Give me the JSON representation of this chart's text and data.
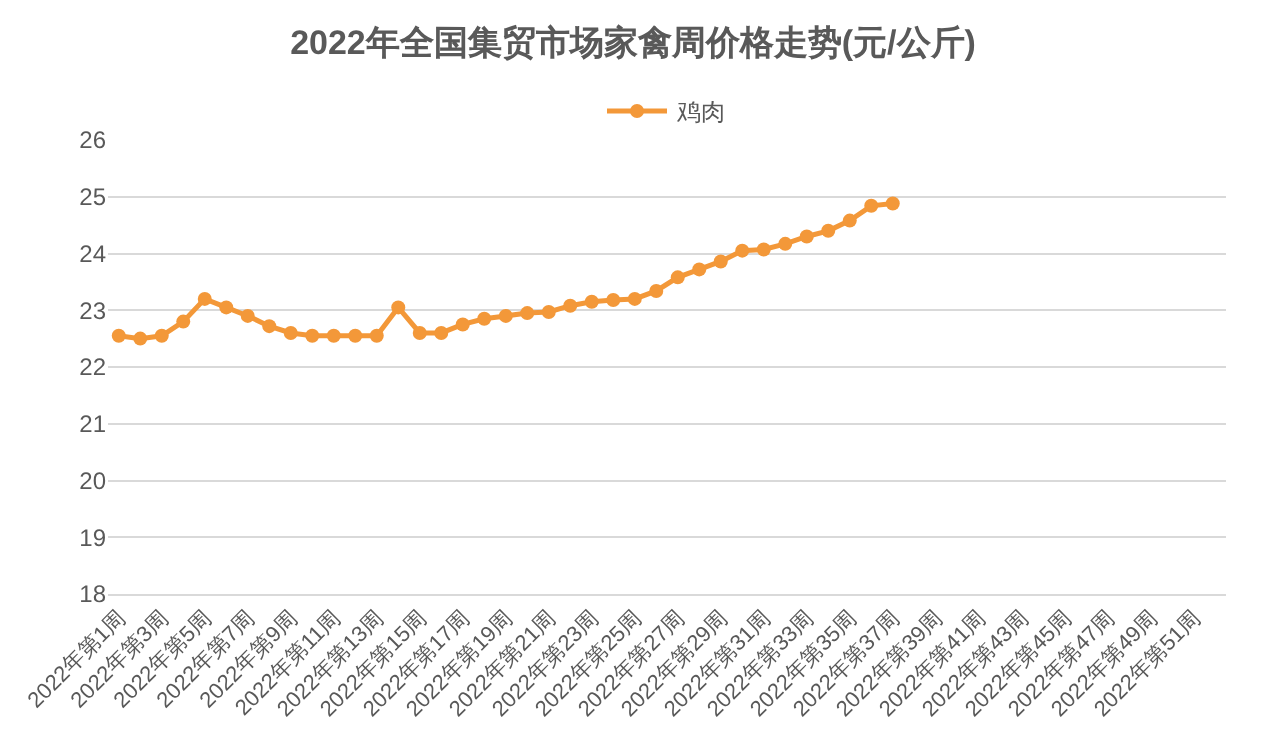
{
  "chart_data": {
    "type": "line",
    "title": "2022年全国集贸市场家禽周价格走势(元/公斤)",
    "categories": [
      "2022年第1周",
      null,
      "2022年第3周",
      null,
      "2022年第5周",
      null,
      "2022年第7周",
      null,
      "2022年第9周",
      null,
      "2022年第11周",
      null,
      "2022年第13周",
      null,
      "2022年第15周",
      null,
      "2022年第17周",
      null,
      "2022年第19周",
      null,
      "2022年第21周",
      null,
      "2022年第23周",
      null,
      "2022年第25周",
      null,
      "2022年第27周",
      null,
      "2022年第29周",
      null,
      "2022年第31周",
      null,
      "2022年第33周",
      null,
      "2022年第35周",
      null,
      "2022年第37周",
      null,
      "2022年第39周",
      null,
      "2022年第41周",
      null,
      "2022年第43周",
      null,
      "2022年第45周",
      null,
      "2022年第47周",
      null,
      "2022年第49周",
      null,
      "2022年第51周",
      null
    ],
    "series": [
      {
        "name": "鸡肉",
        "color": "#f39839",
        "values": [
          22.55,
          22.5,
          22.55,
          22.8,
          23.2,
          23.05,
          22.9,
          22.72,
          22.6,
          22.55,
          22.55,
          22.55,
          22.55,
          23.05,
          22.6,
          22.6,
          22.75,
          22.85,
          22.9,
          22.95,
          22.97,
          23.08,
          23.15,
          23.18,
          23.2,
          23.34,
          23.58,
          23.72,
          23.86,
          24.05,
          24.07,
          24.17,
          24.3,
          24.4,
          24.58,
          24.84,
          24.88,
          null,
          null,
          null,
          null,
          null,
          null,
          null,
          null,
          null,
          null,
          null,
          null,
          null,
          null,
          null
        ]
      }
    ],
    "ylim": [
      18,
      26
    ],
    "yticks": [
      18,
      19,
      20,
      21,
      22,
      23,
      24,
      25,
      26
    ],
    "grid": "y",
    "legend": "top",
    "marker": "circle",
    "line_style": "solid"
  }
}
